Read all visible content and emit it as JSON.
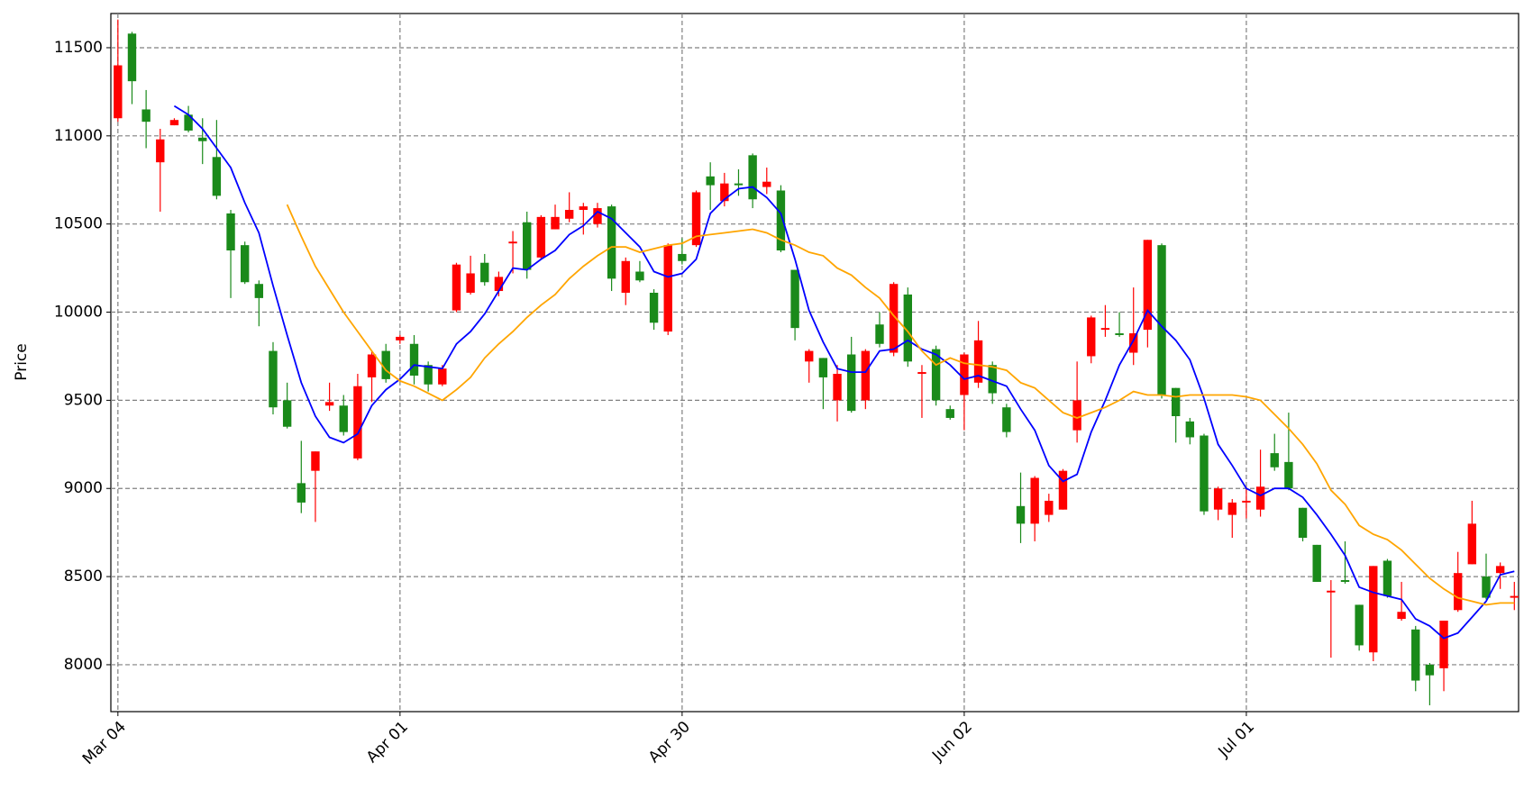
{
  "chart_data": {
    "type": "candlestick",
    "y_label": "Price",
    "xlim": [
      -0.5,
      99.3
    ],
    "xticks": [
      {
        "value": 0,
        "label": "Mar 04"
      },
      {
        "value": 20,
        "label": "Apr 01"
      },
      {
        "value": 40,
        "label": "Apr 30"
      },
      {
        "value": 60,
        "label": "Jun 02"
      },
      {
        "value": 80,
        "label": "Jul 01"
      }
    ],
    "ylim": [
      7734,
      11694
    ],
    "yticks": [
      8000,
      8500,
      9000,
      9500,
      10000,
      10500,
      11000,
      11500
    ],
    "grid": true,
    "up_color": "#ff0000",
    "down_color": "#1a8a1a",
    "open": [
      11100,
      11580,
      11150,
      10850,
      11060,
      11120,
      10990,
      10880,
      10560,
      10380,
      10160,
      9780,
      9500,
      9030,
      9100,
      9470,
      9470,
      9170,
      9630,
      9780,
      9840,
      9820,
      9700,
      9590,
      10010,
      10110,
      10280,
      10120,
      10390,
      10510,
      10310,
      10470,
      10530,
      10580,
      10500,
      10600,
      10110,
      10230,
      10110,
      9890,
      10330,
      10380,
      10770,
      10630,
      10730,
      10890,
      10710,
      10690,
      10240,
      9720,
      9740,
      9500,
      9760,
      9500,
      9930,
      9770,
      10100,
      9650,
      9790,
      9450,
      9530,
      9600,
      9700,
      9460,
      8900,
      8800,
      8850,
      8880,
      9330,
      9750,
      9900,
      9880,
      9770,
      9900,
      10380,
      9570,
      9380,
      9300,
      8880,
      8850,
      8920,
      8880,
      9200,
      9150,
      8890,
      8680,
      8410,
      8480,
      8340,
      8070,
      8590,
      8260,
      8200,
      8000,
      7980,
      8310,
      8570,
      8500,
      8520,
      8380
    ],
    "high": [
      11660,
      11590,
      11260,
      11040,
      11100,
      11170,
      11100,
      11090,
      10580,
      10400,
      10180,
      9830,
      9600,
      9270,
      9210,
      9600,
      9530,
      9650,
      9780,
      9820,
      9870,
      9870,
      9720,
      9700,
      10280,
      10320,
      10330,
      10230,
      10460,
      10570,
      10550,
      10610,
      10680,
      10620,
      10620,
      10610,
      10310,
      10290,
      10130,
      10390,
      10420,
      10690,
      10850,
      10790,
      10810,
      10900,
      10820,
      10720,
      10240,
      9790,
      9740,
      9700,
      9860,
      9790,
      10000,
      10170,
      10140,
      9700,
      9810,
      9470,
      9770,
      9950,
      9720,
      9480,
      9090,
      9070,
      8970,
      9110,
      9720,
      9980,
      10040,
      10000,
      10140,
      10410,
      10390,
      9570,
      9400,
      9310,
      9010,
      8940,
      9010,
      9220,
      9310,
      9430,
      8890,
      8680,
      8480,
      8700,
      8340,
      8560,
      8600,
      8470,
      8220,
      8010,
      8250,
      8640,
      8930,
      8630,
      8580,
      8470
    ],
    "low": [
      11080,
      11180,
      10930,
      10570,
      11060,
      11020,
      10840,
      10640,
      10080,
      10160,
      9920,
      9420,
      9340,
      8860,
      8810,
      9440,
      9300,
      9160,
      9490,
      9600,
      9820,
      9590,
      9550,
      9580,
      10000,
      10100,
      10150,
      10090,
      10220,
      10190,
      10300,
      10470,
      10510,
      10440,
      10480,
      10120,
      10040,
      10170,
      9900,
      9870,
      10270,
      10370,
      10580,
      10600,
      10660,
      10590,
      10670,
      10340,
      9840,
      9600,
      9450,
      9380,
      9430,
      9450,
      9800,
      9750,
      9690,
      9400,
      9470,
      9390,
      9330,
      9570,
      9480,
      9290,
      8690,
      8700,
      8810,
      8880,
      9260,
      9710,
      9860,
      9860,
      9700,
      9800,
      9510,
      9260,
      9250,
      8850,
      8820,
      8720,
      8830,
      8840,
      9100,
      8990,
      8700,
      8470,
      8040,
      8460,
      8080,
      8020,
      8380,
      8250,
      7850,
      7770,
      7850,
      8300,
      8570,
      8370,
      8430,
      8310
    ],
    "close": [
      11400,
      11310,
      11080,
      10980,
      11090,
      11030,
      10970,
      10660,
      10350,
      10170,
      10080,
      9460,
      9350,
      8920,
      9210,
      9490,
      9320,
      9580,
      9760,
      9620,
      9860,
      9640,
      9590,
      9680,
      10270,
      10220,
      10170,
      10200,
      10400,
      10240,
      10540,
      10540,
      10580,
      10600,
      10590,
      10190,
      10290,
      10180,
      9940,
      10380,
      10290,
      10680,
      10720,
      10730,
      10720,
      10640,
      10740,
      10350,
      9910,
      9780,
      9630,
      9650,
      9440,
      9780,
      9820,
      10160,
      9720,
      9660,
      9500,
      9400,
      9760,
      9840,
      9540,
      9320,
      8800,
      9060,
      8930,
      9100,
      9500,
      9970,
      9910,
      9870,
      9880,
      10410,
      9530,
      9410,
      9290,
      8870,
      9000,
      8920,
      8930,
      9010,
      9120,
      9000,
      8720,
      8470,
      8420,
      8470,
      8110,
      8560,
      8390,
      8300,
      7910,
      7940,
      8250,
      8520,
      8800,
      8380,
      8560,
      8390
    ],
    "series": [
      {
        "color": "#0000ff",
        "values": [
          null,
          null,
          null,
          null,
          11170,
          11120,
          11040,
          10930,
          10820,
          10620,
          10450,
          10150,
          9870,
          9600,
          9410,
          9290,
          9260,
          9310,
          9470,
          9560,
          9620,
          9700,
          9690,
          9680,
          9820,
          9890,
          9990,
          10120,
          10250,
          10240,
          10300,
          10350,
          10440,
          10490,
          10570,
          10530,
          10450,
          10370,
          10230,
          10200,
          10220,
          10300,
          10560,
          10640,
          10700,
          10710,
          10650,
          10560,
          10300,
          10010,
          9830,
          9680,
          9660,
          9660,
          9780,
          9790,
          9840,
          9790,
          9760,
          9700,
          9620,
          9640,
          9610,
          9580,
          9450,
          9330,
          9130,
          9040,
          9080,
          9320,
          9500,
          9700,
          9840,
          10010,
          9920,
          9840,
          9730,
          9510,
          9250,
          9130,
          9000,
          8960,
          9000,
          9000,
          8950,
          8850,
          8740,
          8620,
          8440,
          8410,
          8390,
          8370,
          8260,
          8220,
          8150,
          8180,
          8270,
          8360,
          8510,
          8530
        ]
      },
      {
        "color": "#ffa500",
        "values": [
          null,
          null,
          null,
          null,
          null,
          null,
          null,
          null,
          null,
          null,
          null,
          null,
          10610,
          10430,
          10260,
          10130,
          10000,
          9890,
          9780,
          9670,
          9610,
          9580,
          9540,
          9500,
          9560,
          9630,
          9740,
          9820,
          9890,
          9970,
          10040,
          10100,
          10190,
          10260,
          10320,
          10370,
          10370,
          10340,
          10360,
          10380,
          10390,
          10430,
          10440,
          10450,
          10460,
          10470,
          10450,
          10410,
          10380,
          10340,
          10320,
          10250,
          10210,
          10140,
          10080,
          9980,
          9890,
          9780,
          9700,
          9740,
          9710,
          9700,
          9690,
          9670,
          9600,
          9570,
          9500,
          9430,
          9400,
          9430,
          9460,
          9500,
          9550,
          9530,
          9530,
          9520,
          9530,
          9530,
          9530,
          9530,
          9520,
          9500,
          9420,
          9340,
          9250,
          9140,
          8990,
          8910,
          8790,
          8740,
          8710,
          8650,
          8570,
          8490,
          8430,
          8380,
          8360,
          8340,
          8350,
          8350
        ]
      }
    ]
  }
}
